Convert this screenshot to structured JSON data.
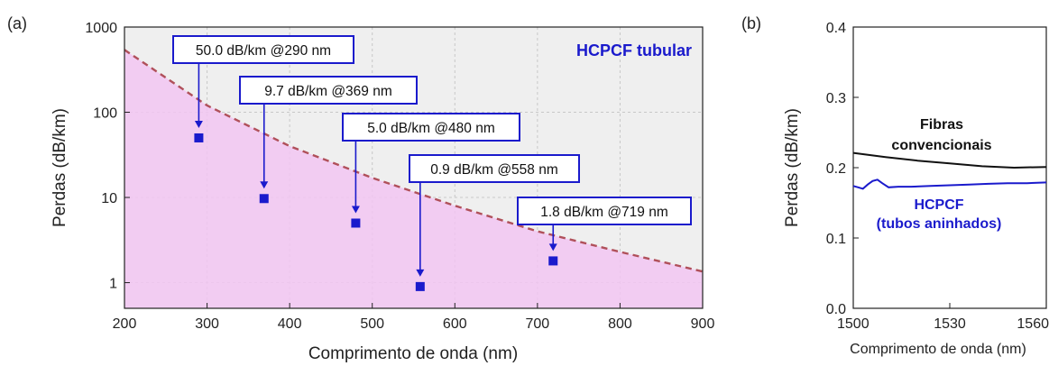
{
  "chart_data": [
    {
      "panel_label": "(a)",
      "type": "scatter",
      "xlabel": "Comprimento de onda (nm)",
      "ylabel": "Perdas (dB/km)",
      "xlim": [
        200,
        900
      ],
      "ylim": [
        0.5,
        1000
      ],
      "yscale": "log",
      "grid": true,
      "x_ticks": [
        200,
        300,
        400,
        500,
        600,
        700,
        800,
        900
      ],
      "y_ticks": [
        1,
        10,
        100,
        1000
      ],
      "annotation_title": "HCPCF tubular",
      "series": [
        {
          "type": "scatter",
          "color": "#1a1acc",
          "x": [
            290,
            369,
            480,
            558,
            719
          ],
          "y": [
            50.0,
            9.7,
            5.0,
            0.9,
            1.8
          ]
        },
        {
          "type": "area-dashed-line",
          "color": "#b0505a",
          "fill": "#f2c6f2",
          "x": [
            200,
            300,
            400,
            500,
            600,
            700,
            800,
            900
          ],
          "y": [
            540,
            120,
            40,
            17,
            8,
            4,
            2.3,
            1.35
          ]
        }
      ],
      "annotations": [
        {
          "text": "50.0 dB/km @290 nm",
          "x": 290,
          "y": 50.0
        },
        {
          "text": "9.7 dB/km @369 nm",
          "x": 369,
          "y": 9.7
        },
        {
          "text": "5.0 dB/km @480 nm",
          "x": 480,
          "y": 5.0
        },
        {
          "text": "0.9 dB/km @558 nm",
          "x": 558,
          "y": 0.9
        },
        {
          "text": "1.8 dB/km @719 nm",
          "x": 719,
          "y": 1.8
        }
      ]
    },
    {
      "panel_label": "(b)",
      "type": "line",
      "xlabel": "Comprimento de onda (nm)",
      "ylabel": "Perdas (dB/km)",
      "xlim": [
        1500,
        1560
      ],
      "ylim": [
        0.0,
        0.4
      ],
      "grid": false,
      "x_ticks": [
        1500,
        1530,
        1560
      ],
      "y_ticks": [
        "0.0",
        "0.1",
        "0.2",
        "0.3",
        "0.4"
      ],
      "series": [
        {
          "label_lines": [
            "Fibras",
            "convencionais"
          ],
          "color": "#111111",
          "x": [
            1500,
            1510,
            1520,
            1530,
            1540,
            1550,
            1560
          ],
          "y": [
            0.221,
            0.215,
            0.21,
            0.206,
            0.202,
            0.2,
            0.201
          ]
        },
        {
          "label_lines": [
            "HCPCF",
            "(tubos aninhados)"
          ],
          "color": "#1a1acc",
          "x": [
            1500,
            1501.5,
            1503,
            1504.5,
            1506,
            1507.5,
            1509,
            1511,
            1514,
            1518,
            1524,
            1530,
            1536,
            1542,
            1548,
            1554,
            1560
          ],
          "y": [
            0.174,
            0.172,
            0.17,
            0.176,
            0.181,
            0.183,
            0.178,
            0.172,
            0.173,
            0.173,
            0.174,
            0.175,
            0.176,
            0.177,
            0.178,
            0.178,
            0.179
          ]
        }
      ]
    }
  ]
}
